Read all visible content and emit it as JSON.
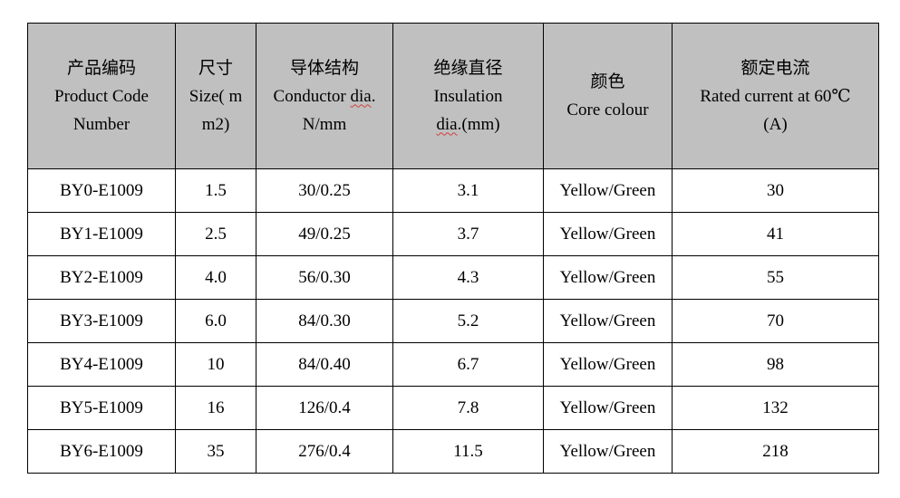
{
  "table": {
    "headers": [
      {
        "lines": [
          "产品编码",
          "Product Code",
          "Number"
        ]
      },
      {
        "lines": [
          "尺寸",
          "Size( m",
          "m2)"
        ]
      },
      {
        "lines": [
          "导体结构",
          "Conductor dia.",
          "N/mm"
        ]
      },
      {
        "lines": [
          "绝缘直径",
          "Insulation",
          "dia.(mm)"
        ]
      },
      {
        "lines": [
          "颜色",
          "Core colour"
        ]
      },
      {
        "lines": [
          "额定电流",
          "Rated current at 60℃",
          "(A)"
        ]
      }
    ],
    "rows": [
      [
        "BY0-E1009",
        "1.5",
        "30/0.25",
        "3.1",
        "Yellow/Green",
        "30"
      ],
      [
        "BY1-E1009",
        "2.5",
        "49/0.25",
        "3.7",
        "Yellow/Green",
        "41"
      ],
      [
        "BY2-E1009",
        "4.0",
        "56/0.30",
        "4.3",
        "Yellow/Green",
        "55"
      ],
      [
        "BY3-E1009",
        "6.0",
        "84/0.30",
        "5.2",
        "Yellow/Green",
        "70"
      ],
      [
        "BY4-E1009",
        "10",
        "84/0.40",
        "6.7",
        "Yellow/Green",
        "98"
      ],
      [
        "BY5-E1009",
        "16",
        "126/0.4",
        "7.8",
        "Yellow/Green",
        "132"
      ],
      [
        "BY6-E1009",
        "35",
        "276/0.4",
        "11.5",
        "Yellow/Green",
        "218"
      ]
    ]
  },
  "colors": {
    "header_background": "#c0c0c0",
    "border": "#000000"
  }
}
